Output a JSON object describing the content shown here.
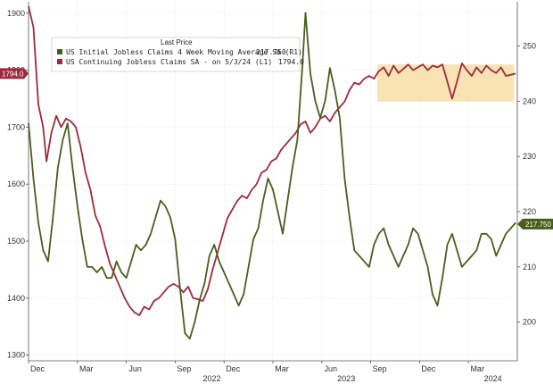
{
  "chart_data": {
    "type": "line",
    "legend": {
      "title": "Last Price",
      "placement": "top-left",
      "entries": [
        {
          "label": "US Initial Jobless Claims 4 Week Moving Average SA (R1)",
          "value": "217.750",
          "color": "#4a5e1c"
        },
        {
          "label": "US Continuing Jobless Claims SA - on 5/3/24 (L1)",
          "value": "1794.0",
          "color": "#9e2a3f"
        }
      ]
    },
    "x_axis": {
      "month_labels": [
        "Dec",
        "Mar",
        "Jun",
        "Sep",
        "Dec",
        "Mar",
        "Jun",
        "Sep",
        "Dec",
        "Mar"
      ],
      "year_labels": [
        "2022",
        "2023",
        "2024"
      ],
      "range": [
        "2021-12",
        "2024-05"
      ]
    },
    "y_axis_left": {
      "ticks": [
        "1300",
        "1400",
        "1500",
        "1600",
        "1700",
        "1800",
        "1900"
      ],
      "range": [
        1290,
        1920
      ]
    },
    "y_axis_right": {
      "ticks": [
        "200",
        "210",
        "220",
        "230",
        "240",
        "250"
      ],
      "range": [
        193,
        258
      ]
    },
    "last_value_tags": {
      "left": {
        "text": "1794.0",
        "color": "#9e2a3f"
      },
      "right": {
        "text": "217.750",
        "color": "#4a5e1c"
      }
    },
    "highlight_band": {
      "x_start": 21.4,
      "x_end": 29.8,
      "y_low": 1745,
      "y_high": 1810,
      "color": "#f7d99a"
    },
    "grid": true,
    "series": [
      {
        "name": "US Continuing Jobless Claims SA",
        "axis": "left",
        "color": "#9e2a3f",
        "points": [
          [
            0,
            1912
          ],
          [
            0.3,
            1875
          ],
          [
            0.6,
            1740
          ],
          [
            0.9,
            1700
          ],
          [
            1.1,
            1640
          ],
          [
            1.4,
            1690
          ],
          [
            1.7,
            1720
          ],
          [
            2,
            1700
          ],
          [
            2.3,
            1715
          ],
          [
            2.6,
            1710
          ],
          [
            2.9,
            1700
          ],
          [
            3.2,
            1665
          ],
          [
            3.5,
            1620
          ],
          [
            3.8,
            1590
          ],
          [
            4.1,
            1545
          ],
          [
            4.4,
            1525
          ],
          [
            4.7,
            1490
          ],
          [
            5,
            1460
          ],
          [
            5.3,
            1440
          ],
          [
            5.6,
            1420
          ],
          [
            5.9,
            1400
          ],
          [
            6.2,
            1385
          ],
          [
            6.5,
            1375
          ],
          [
            6.8,
            1370
          ],
          [
            7.1,
            1385
          ],
          [
            7.4,
            1380
          ],
          [
            7.7,
            1395
          ],
          [
            8,
            1400
          ],
          [
            8.3,
            1410
          ],
          [
            8.6,
            1420
          ],
          [
            8.9,
            1425
          ],
          [
            9.2,
            1420
          ],
          [
            9.5,
            1410
          ],
          [
            9.8,
            1420
          ],
          [
            10.1,
            1400
          ],
          [
            10.4,
            1398
          ],
          [
            10.7,
            1395
          ],
          [
            11,
            1415
          ],
          [
            11.3,
            1450
          ],
          [
            11.6,
            1480
          ],
          [
            11.9,
            1510
          ],
          [
            12.2,
            1540
          ],
          [
            12.5,
            1555
          ],
          [
            12.8,
            1570
          ],
          [
            13.1,
            1580
          ],
          [
            13.4,
            1575
          ],
          [
            13.7,
            1590
          ],
          [
            14,
            1600
          ],
          [
            14.3,
            1620
          ],
          [
            14.6,
            1625
          ],
          [
            14.9,
            1640
          ],
          [
            15.2,
            1645
          ],
          [
            15.5,
            1660
          ],
          [
            15.8,
            1670
          ],
          [
            16.1,
            1680
          ],
          [
            16.4,
            1690
          ],
          [
            16.7,
            1705
          ],
          [
            17,
            1710
          ],
          [
            17.3,
            1690
          ],
          [
            17.6,
            1700
          ],
          [
            17.9,
            1715
          ],
          [
            18.2,
            1720
          ],
          [
            18.5,
            1710
          ],
          [
            18.8,
            1725
          ],
          [
            19.1,
            1735
          ],
          [
            19.4,
            1745
          ],
          [
            19.7,
            1765
          ],
          [
            20,
            1778
          ],
          [
            20.3,
            1775
          ],
          [
            20.6,
            1785
          ],
          [
            20.9,
            1790
          ],
          [
            21.2,
            1785
          ],
          [
            21.5,
            1798
          ],
          [
            21.8,
            1805
          ],
          [
            22.1,
            1790
          ],
          [
            22.4,
            1808
          ],
          [
            22.7,
            1795
          ],
          [
            23,
            1802
          ],
          [
            23.3,
            1810
          ],
          [
            23.6,
            1800
          ],
          [
            23.9,
            1805
          ],
          [
            24.2,
            1810
          ],
          [
            24.5,
            1800
          ],
          [
            24.8,
            1808
          ],
          [
            25.1,
            1805
          ],
          [
            25.4,
            1810
          ],
          [
            25.7,
            1780
          ],
          [
            26,
            1750
          ],
          [
            26.3,
            1780
          ],
          [
            26.6,
            1812
          ],
          [
            26.9,
            1800
          ],
          [
            27.2,
            1790
          ],
          [
            27.5,
            1805
          ],
          [
            27.8,
            1795
          ],
          [
            28.1,
            1808
          ],
          [
            28.4,
            1800
          ],
          [
            28.7,
            1795
          ],
          [
            29,
            1805
          ],
          [
            29.3,
            1790
          ],
          [
            29.6,
            1792
          ],
          [
            29.9,
            1794
          ]
        ]
      },
      {
        "name": "US Initial Jobless Claims 4 Week Moving Average SA",
        "axis": "right",
        "color": "#4a5e1c",
        "points": [
          [
            0,
            236
          ],
          [
            0.3,
            226
          ],
          [
            0.6,
            218
          ],
          [
            0.9,
            213
          ],
          [
            1.2,
            211
          ],
          [
            1.5,
            219
          ],
          [
            1.8,
            228
          ],
          [
            2.1,
            233
          ],
          [
            2.4,
            236
          ],
          [
            2.7,
            228
          ],
          [
            3,
            221
          ],
          [
            3.3,
            215
          ],
          [
            3.6,
            210
          ],
          [
            3.9,
            210
          ],
          [
            4.2,
            209
          ],
          [
            4.5,
            210
          ],
          [
            4.8,
            208
          ],
          [
            5.1,
            208
          ],
          [
            5.4,
            211
          ],
          [
            5.7,
            209
          ],
          [
            6,
            208
          ],
          [
            6.3,
            211
          ],
          [
            6.6,
            214
          ],
          [
            6.9,
            213
          ],
          [
            7.2,
            214
          ],
          [
            7.5,
            216
          ],
          [
            7.8,
            219
          ],
          [
            8.1,
            222
          ],
          [
            8.4,
            221
          ],
          [
            8.7,
            219
          ],
          [
            9,
            215
          ],
          [
            9.3,
            206
          ],
          [
            9.6,
            198
          ],
          [
            9.9,
            197
          ],
          [
            10.2,
            200
          ],
          [
            10.5,
            204
          ],
          [
            10.8,
            207
          ],
          [
            11.1,
            212
          ],
          [
            11.4,
            214
          ],
          [
            11.7,
            211
          ],
          [
            12,
            209
          ],
          [
            12.3,
            207
          ],
          [
            12.6,
            205
          ],
          [
            12.9,
            203
          ],
          [
            13.2,
            205
          ],
          [
            13.5,
            210
          ],
          [
            13.8,
            215
          ],
          [
            14.1,
            217
          ],
          [
            14.4,
            222
          ],
          [
            14.7,
            226
          ],
          [
            15,
            224
          ],
          [
            15.3,
            220
          ],
          [
            15.6,
            216
          ],
          [
            15.9,
            222
          ],
          [
            16.2,
            228
          ],
          [
            16.5,
            233
          ],
          [
            16.8,
            246
          ],
          [
            17,
            256
          ],
          [
            17.3,
            245
          ],
          [
            17.6,
            240
          ],
          [
            17.9,
            237
          ],
          [
            18.2,
            240
          ],
          [
            18.5,
            246
          ],
          [
            18.8,
            242
          ],
          [
            19.1,
            237
          ],
          [
            19.4,
            226
          ],
          [
            19.7,
            219
          ],
          [
            20,
            213
          ],
          [
            20.3,
            212
          ],
          [
            20.6,
            211
          ],
          [
            20.9,
            210
          ],
          [
            21.2,
            214
          ],
          [
            21.5,
            216
          ],
          [
            21.8,
            217
          ],
          [
            22.1,
            214
          ],
          [
            22.4,
            212
          ],
          [
            22.7,
            210
          ],
          [
            23,
            212
          ],
          [
            23.3,
            214
          ],
          [
            23.6,
            217
          ],
          [
            23.9,
            216
          ],
          [
            24.2,
            213
          ],
          [
            24.5,
            210
          ],
          [
            24.8,
            205
          ],
          [
            25.1,
            203
          ],
          [
            25.4,
            208
          ],
          [
            25.7,
            214
          ],
          [
            26,
            216
          ],
          [
            26.3,
            213
          ],
          [
            26.6,
            210
          ],
          [
            26.9,
            211
          ],
          [
            27.2,
            212
          ],
          [
            27.5,
            213
          ],
          [
            27.8,
            216
          ],
          [
            28.1,
            216
          ],
          [
            28.4,
            215
          ],
          [
            28.7,
            212
          ],
          [
            29,
            214
          ],
          [
            29.3,
            216
          ],
          [
            29.9,
            218
          ]
        ]
      }
    ]
  }
}
